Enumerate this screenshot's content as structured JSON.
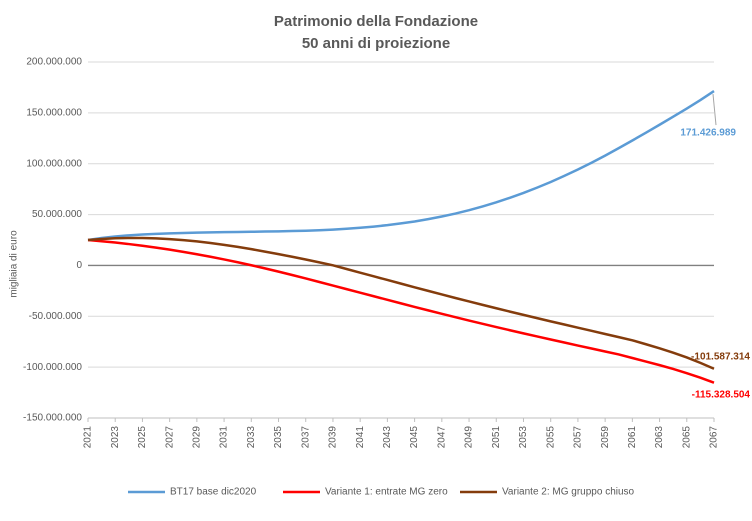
{
  "chart_data": {
    "type": "line",
    "title": [
      "Patrimonio della Fondazione",
      "50 anni di proiezione"
    ],
    "ylabel": "migliaia di euro",
    "x": [
      2021,
      2022,
      2023,
      2024,
      2025,
      2026,
      2027,
      2028,
      2029,
      2030,
      2031,
      2032,
      2033,
      2034,
      2035,
      2036,
      2037,
      2038,
      2039,
      2040,
      2041,
      2042,
      2043,
      2044,
      2045,
      2046,
      2047,
      2048,
      2049,
      2050,
      2051,
      2052,
      2053,
      2054,
      2055,
      2056,
      2057,
      2058,
      2059,
      2060,
      2061,
      2062,
      2063,
      2064,
      2065,
      2066,
      2067
    ],
    "xlim": [
      2021,
      2067
    ],
    "xticks": [
      2021,
      2023,
      2025,
      2027,
      2029,
      2031,
      2033,
      2035,
      2037,
      2039,
      2041,
      2043,
      2045,
      2047,
      2049,
      2051,
      2053,
      2055,
      2057,
      2059,
      2061,
      2063,
      2065,
      2067
    ],
    "ylim": [
      -150000000,
      200000000
    ],
    "yticks": [
      {
        "value": -150000000,
        "label": "-150.000.000"
      },
      {
        "value": -100000000,
        "label": "-100.000.000"
      },
      {
        "value": -50000000,
        "label": "-50.000.000"
      },
      0,
      {
        "value": 50000000,
        "label": "50.000.000"
      },
      {
        "value": 100000000,
        "label": "100.000.000"
      },
      {
        "value": 150000000,
        "label": "150.000.000"
      },
      {
        "value": 200000000,
        "label": "200.000.000"
      }
    ],
    "grid": true,
    "legend": "bottom",
    "series": [
      {
        "name": "BT17 base dic2020",
        "color": "#5b9bd5",
        "values": [
          25000000,
          27000000,
          28500000,
          29600000,
          30400000,
          31000000,
          31500000,
          31900000,
          32200000,
          32500000,
          32700000,
          32900000,
          33100000,
          33300000,
          33500000,
          33800000,
          34100000,
          34600000,
          35200000,
          36000000,
          37000000,
          38200000,
          39600000,
          41300000,
          43200000,
          45500000,
          48100000,
          51000000,
          54300000,
          58000000,
          62000000,
          66500000,
          71300000,
          76500000,
          82000000,
          88000000,
          94300000,
          101000000,
          108000000,
          115300000,
          122800000,
          130500000,
          138300000,
          146200000,
          154200000,
          162600000,
          171426989
        ],
        "value_labels": {
          "46": "171.426.989"
        }
      },
      {
        "name": "Variante 1: entrate MG zero",
        "color": "#ff0000",
        "values": [
          25000000,
          23800000,
          22500000,
          21000000,
          19300000,
          17500000,
          15500000,
          13300000,
          11000000,
          8500000,
          5900000,
          3100000,
          200000,
          -2900000,
          -6100000,
          -9400000,
          -12800000,
          -16300000,
          -19800000,
          -23300000,
          -26800000,
          -30300000,
          -33800000,
          -37300000,
          -40800000,
          -44200000,
          -47600000,
          -50900000,
          -54200000,
          -57400000,
          -60600000,
          -63700000,
          -66800000,
          -69800000,
          -72800000,
          -75800000,
          -78800000,
          -81700000,
          -84600000,
          -87500000,
          -91000000,
          -94500000,
          -98000000,
          -101800000,
          -105900000,
          -110400000,
          -115328504
        ],
        "value_labels": {
          "46": "-115.328.504"
        }
      },
      {
        "name": "Variante 2: MG gruppo chiuso",
        "color": "#843c0c",
        "values": [
          25000000,
          26000000,
          26700000,
          27000000,
          27000000,
          26600000,
          25900000,
          24900000,
          23600000,
          22000000,
          20200000,
          18200000,
          16000000,
          13600000,
          11100000,
          8500000,
          5800000,
          3000000,
          100000,
          -3500000,
          -7100000,
          -10700000,
          -14300000,
          -17900000,
          -21500000,
          -25000000,
          -28500000,
          -32000000,
          -35400000,
          -38800000,
          -42100000,
          -45400000,
          -48600000,
          -51800000,
          -55000000,
          -58100000,
          -61200000,
          -64300000,
          -67400000,
          -70500000,
          -73600000,
          -77500000,
          -81500000,
          -85800000,
          -90500000,
          -95800000,
          -101587314
        ],
        "value_labels": {
          "46": "-101.587.314"
        }
      }
    ]
  }
}
